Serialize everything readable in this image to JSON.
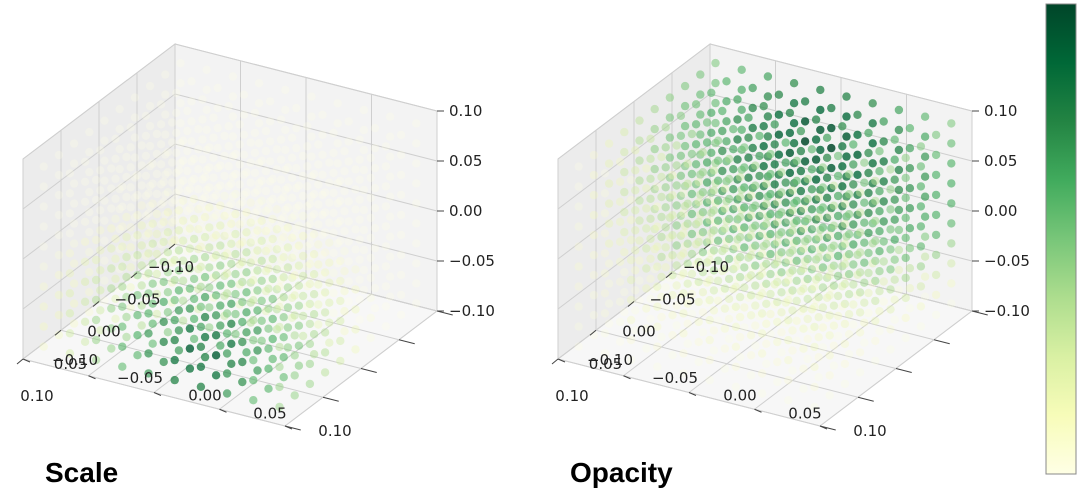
{
  "chart_data": [
    {
      "type": "scatter3d",
      "title": "Scale",
      "x_ticks": [
        "−0.10",
        "−0.05",
        "0.00",
        "0.05",
        "0.10"
      ],
      "y_ticks": [
        "−0.10",
        "−0.05",
        "0.00",
        "0.05",
        "0.10"
      ],
      "z_ticks": [
        "−0.10",
        "−0.05",
        "0.00",
        "0.05",
        "0.10"
      ],
      "xlim": [
        -0.1,
        0.1
      ],
      "ylim": [
        -0.1,
        0.1
      ],
      "zlim": [
        -0.1,
        0.1
      ],
      "grid_points_per_axis": 10,
      "colormap": "YlGn",
      "value_pattern": "high values concentrated near low-z, front-right corner"
    },
    {
      "type": "scatter3d",
      "title": "Opacity",
      "x_ticks": [
        "−0.10",
        "−0.05",
        "0.00",
        "0.05",
        "0.10"
      ],
      "y_ticks": [
        "−0.10",
        "−0.05",
        "0.00",
        "0.05",
        "0.10"
      ],
      "z_ticks": [
        "−0.10",
        "−0.05",
        "0.00",
        "0.05",
        "0.10"
      ],
      "xlim": [
        -0.1,
        0.1
      ],
      "ylim": [
        -0.1,
        0.1
      ],
      "zlim": [
        -0.1,
        0.1
      ],
      "grid_points_per_axis": 10,
      "colormap": "YlGn",
      "value_pattern": "high values concentrated in upper back region"
    }
  ],
  "colorbar": {
    "colormap": "YlGn",
    "stops": [
      "#ffffe5",
      "#f7fcb9",
      "#d9f0a3",
      "#addd8e",
      "#78c679",
      "#41ab5d",
      "#238443",
      "#006837",
      "#004529"
    ]
  }
}
